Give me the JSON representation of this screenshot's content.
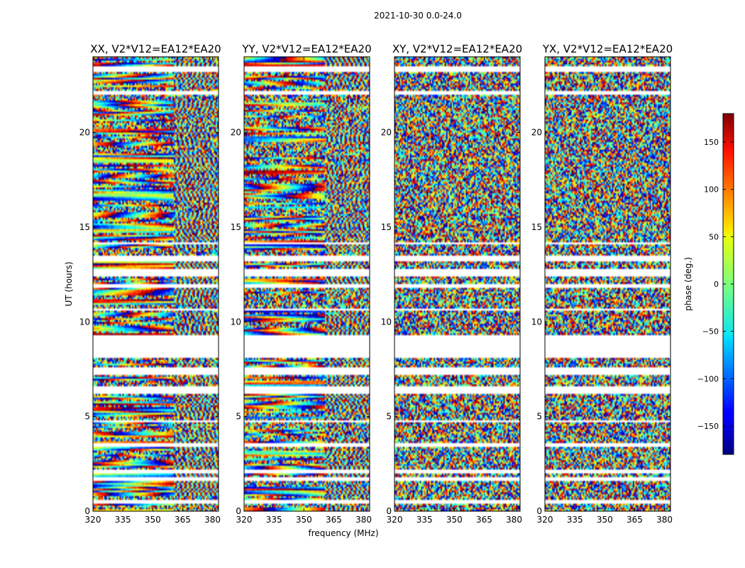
{
  "chart_data": {
    "type": "heatmap",
    "title": "2021-10-30 0.0-24.0",
    "xlabel": "frequency (MHz)",
    "ylabel": "UT (hours)",
    "xlim": [
      320,
      383
    ],
    "ylim": [
      0,
      24
    ],
    "xticks": [
      320,
      335,
      350,
      365,
      380
    ],
    "yticks": [
      0,
      5,
      10,
      15,
      20
    ],
    "panels": [
      {
        "name": "XX",
        "title": "XX, V2*V12=EA12*EA20"
      },
      {
        "name": "YY",
        "title": "YY, V2*V12=EA12*EA20"
      },
      {
        "name": "XY",
        "title": "XY, V2*V12=EA12*EA20"
      },
      {
        "name": "YX",
        "title": "YX, V2*V12=EA12*EA20"
      }
    ],
    "colorbar": {
      "label": "phase (deg.)",
      "range": [
        -180,
        180
      ],
      "ticks": [
        150,
        100,
        50,
        0,
        -50,
        -100,
        -150
      ],
      "tick_labels": [
        "150",
        "100",
        "50",
        "0",
        "−50",
        "−100",
        "−150"
      ],
      "colormap": "jet"
    },
    "blank_ut_bands": [
      [
        0.4,
        0.6
      ],
      [
        1.6,
        1.75
      ],
      [
        2.0,
        2.15
      ],
      [
        3.4,
        3.6
      ],
      [
        4.7,
        4.8
      ],
      [
        6.2,
        6.6
      ],
      [
        7.2,
        7.6
      ],
      [
        8.1,
        9.3
      ],
      [
        10.6,
        10.7
      ],
      [
        11.8,
        12.0
      ],
      [
        12.4,
        12.8
      ],
      [
        13.2,
        13.5
      ],
      [
        14.1,
        14.2
      ],
      [
        22.0,
        22.2
      ],
      [
        23.2,
        23.5
      ]
    ]
  }
}
